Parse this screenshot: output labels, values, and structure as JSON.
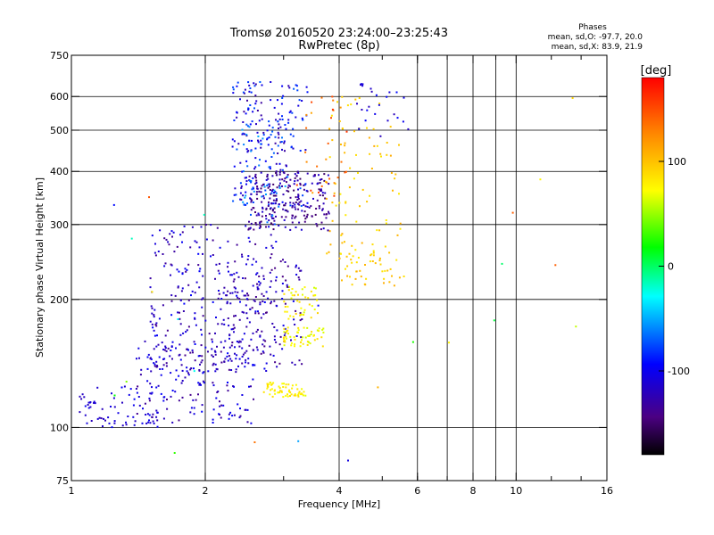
{
  "title_line1": "Tromsø 20160520 23:24:00–23:25:43",
  "title_line2": "RwPretec (8p)",
  "stats": {
    "heading": "Phases",
    "line_o": "mean, sd,O: -97.7, 20.0",
    "line_x": "mean, sd,X:  83.9, 21.9"
  },
  "colorbar": {
    "unit": "[deg]",
    "ticks": [
      {
        "label": "100",
        "value": 100
      },
      {
        "label": "0",
        "value": 0
      },
      {
        "label": "-100",
        "value": -100
      }
    ],
    "vmin": -180,
    "vmax": 180
  },
  "chart_data": {
    "type": "scatter",
    "xlabel": "Frequency [MHz]",
    "ylabel": "Stationary phase Virtual Height [km]",
    "xscale": "log",
    "yscale": "log",
    "xlim": [
      1,
      16
    ],
    "ylim": [
      75,
      750
    ],
    "xticks": [
      {
        "label": "1",
        "value": 1
      },
      {
        "label": "2",
        "value": 2
      },
      {
        "label": "4",
        "value": 4
      },
      {
        "label": "6",
        "value": 6
      },
      {
        "label": "8",
        "value": 8
      },
      {
        "label": "10",
        "value": 10
      },
      {
        "label": "16",
        "value": 16
      }
    ],
    "xgrid": [
      2,
      4,
      6,
      7,
      8,
      9,
      10
    ],
    "minor_xticks": [
      3,
      5,
      6,
      7,
      8,
      9,
      12,
      14
    ],
    "yticks": [
      {
        "label": "75",
        "value": 75
      },
      {
        "label": "100",
        "value": 100
      },
      {
        "label": "200",
        "value": 200
      },
      {
        "label": "300",
        "value": 300
      },
      {
        "label": "400",
        "value": 400
      },
      {
        "label": "500",
        "value": 500
      },
      {
        "label": "600",
        "value": 600
      },
      {
        "label": "750",
        "value": 750
      }
    ],
    "ygrid": [
      100,
      200,
      300,
      400,
      500,
      600
    ],
    "groups": [
      {
        "n": 70,
        "fmin": 1.02,
        "fmax": 1.6,
        "hmin": 100,
        "hmax": 125,
        "pmin": -120,
        "pmax": -95
      },
      {
        "n": 180,
        "fmin": 1.4,
        "fmax": 2.6,
        "hmin": 102,
        "hmax": 160,
        "pmin": -135,
        "pmax": -95
      },
      {
        "n": 260,
        "fmin": 1.5,
        "fmax": 2.9,
        "hmin": 135,
        "hmax": 300,
        "pmin": -135,
        "pmax": -95
      },
      {
        "n": 140,
        "fmin": 2.2,
        "fmax": 3.3,
        "hmin": 140,
        "hmax": 250,
        "pmin": -140,
        "pmax": -100
      },
      {
        "n": 220,
        "fmin": 2.3,
        "fmax": 3.4,
        "hmin": 330,
        "hmax": 650,
        "pmin": -130,
        "pmax": -70
      },
      {
        "n": 230,
        "fmin": 2.5,
        "fmax": 3.8,
        "hmin": 290,
        "hmax": 400,
        "pmin": -150,
        "pmax": -110
      },
      {
        "n": 45,
        "fmin": 2.4,
        "fmax": 3.1,
        "hmin": 300,
        "hmax": 520,
        "pmin": -80,
        "pmax": -50
      },
      {
        "n": 60,
        "fmin": 2.7,
        "fmax": 3.4,
        "hmin": 118,
        "hmax": 128,
        "pmin": 65,
        "pmax": 90
      },
      {
        "n": 55,
        "fmin": 3.0,
        "fmax": 3.7,
        "hmin": 155,
        "hmax": 172,
        "pmin": 60,
        "pmax": 90
      },
      {
        "n": 45,
        "fmin": 3.0,
        "fmax": 3.6,
        "hmin": 180,
        "hmax": 215,
        "pmin": 60,
        "pmax": 95
      },
      {
        "n": 90,
        "fmin": 3.7,
        "fmax": 5.5,
        "hmin": 240,
        "hmax": 600,
        "pmin": 80,
        "pmax": 110
      },
      {
        "n": 40,
        "fmin": 4.0,
        "fmax": 5.6,
        "hmin": 215,
        "hmax": 260,
        "pmin": 80,
        "pmax": 110
      },
      {
        "n": 30,
        "fmin": 3.2,
        "fmax": 4.2,
        "hmin": 350,
        "hmax": 620,
        "pmin": 110,
        "pmax": 160
      },
      {
        "n": 25,
        "fmin": 4.3,
        "fmax": 5.8,
        "hmin": 480,
        "hmax": 650,
        "pmin": -120,
        "pmax": -90
      },
      {
        "n": 25,
        "fmin": 1.1,
        "fmax": 14.0,
        "hmin": 80,
        "hmax": 620,
        "pmin": -130,
        "pmax": 150
      }
    ]
  }
}
